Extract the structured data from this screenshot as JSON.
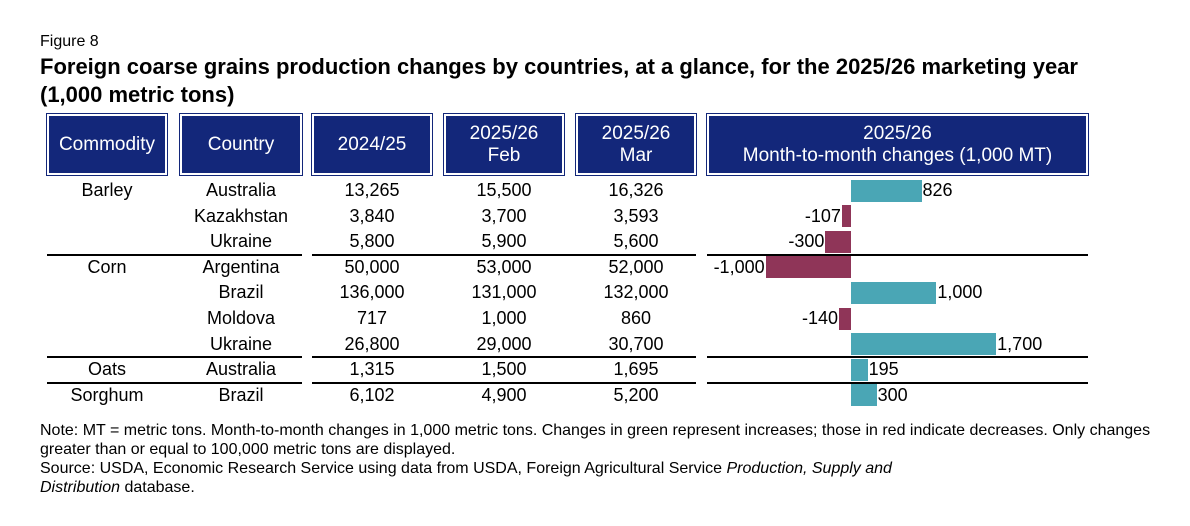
{
  "figure_label": "Figure 8",
  "title": "Foreign coarse grains production changes by countries, at a glance, for the 2025/26 marketing year (1,000 metric tons)",
  "headers": {
    "commodity": "Commodity",
    "country": "Country",
    "y2425": "2024/25",
    "feb_1": "2025/26",
    "feb_2": "Feb",
    "mar_1": "2025/26",
    "mar_2": "Mar",
    "chg_1": "2025/26",
    "chg_2": "Month-to-month changes (1,000 MT)"
  },
  "chart_data": {
    "type": "table",
    "columns": [
      "Commodity",
      "Country",
      "2024/25",
      "2025/26 Feb",
      "2025/26 Mar",
      "2025/26 Month-to-month changes (1,000 MT)"
    ],
    "rows": [
      {
        "commodity": "Barley",
        "country": "Australia",
        "y2425": "13,265",
        "feb": "15,500",
        "mar": "16,326",
        "change": 826,
        "change_label": "826"
      },
      {
        "commodity": "",
        "country": "Kazakhstan",
        "y2425": "3,840",
        "feb": "3,700",
        "mar": "3,593",
        "change": -107,
        "change_label": "-107"
      },
      {
        "commodity": "",
        "country": "Ukraine",
        "y2425": "5,800",
        "feb": "5,900",
        "mar": "5,600",
        "change": -300,
        "change_label": "-300"
      },
      {
        "commodity": "Corn",
        "country": "Argentina",
        "y2425": "50,000",
        "feb": "53,000",
        "mar": "52,000",
        "change": -1000,
        "change_label": "-1,000"
      },
      {
        "commodity": "",
        "country": "Brazil",
        "y2425": "136,000",
        "feb": "131,000",
        "mar": "132,000",
        "change": 1000,
        "change_label": "1,000"
      },
      {
        "commodity": "",
        "country": "Moldova",
        "y2425": "717",
        "feb": "1,000",
        "mar": "860",
        "change": -140,
        "change_label": "-140"
      },
      {
        "commodity": "",
        "country": "Ukraine",
        "y2425": "26,800",
        "feb": "29,000",
        "mar": "30,700",
        "change": 1700,
        "change_label": "1,700"
      },
      {
        "commodity": "Oats",
        "country": "Australia",
        "y2425": "1,315",
        "feb": "1,500",
        "mar": "1,695",
        "change": 195,
        "change_label": "195"
      },
      {
        "commodity": "Sorghum",
        "country": "Brazil",
        "y2425": "6,102",
        "feb": "4,900",
        "mar": "5,200",
        "change": 300,
        "change_label": "300"
      }
    ],
    "bar_colors": {
      "increase": "#4aa6b5",
      "decrease": "#8f3558"
    }
  },
  "notes": {
    "line1": "Note: MT = metric tons. Month-to-month changes in 1,000 metric tons. Changes in green represent increases; those in red indicate decreases. Only changes greater than or equal to 100,000 metric tons are displayed.",
    "source_prefix": "Source: USDA, Economic Research Service using data from USDA, Foreign Agricultural Service ",
    "source_italic1": "Production, Supply and",
    "source_italic2": "Distribution",
    "source_suffix": " database."
  },
  "header_color": "#13277a"
}
